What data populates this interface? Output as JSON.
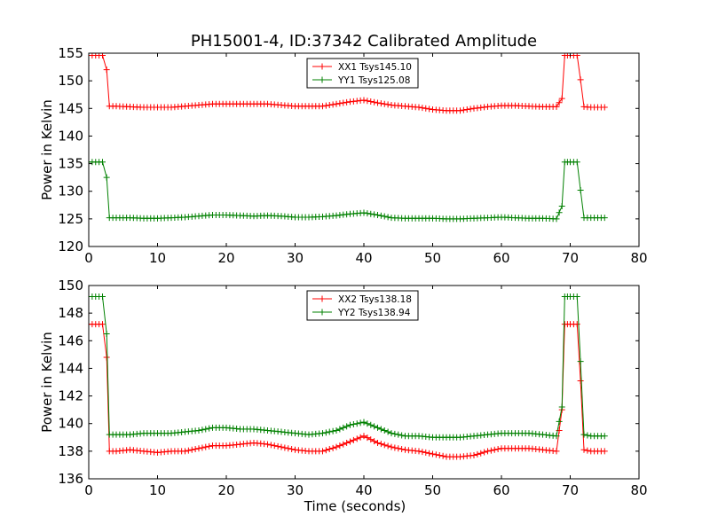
{
  "figure": {
    "title": "PH15001-4, ID:37342 Calibrated Amplitude"
  },
  "chart_data": [
    {
      "type": "line",
      "title": "PH15001-4, ID:37342 Calibrated Amplitude",
      "xlabel": "",
      "ylabel": "Power in Kelvin",
      "xlim": [
        0,
        80
      ],
      "ylim": [
        120,
        155
      ],
      "xticks": [
        "0",
        "10",
        "20",
        "30",
        "40",
        "50",
        "60",
        "70",
        "80"
      ],
      "yticks": [
        "120",
        "125",
        "130",
        "135",
        "140",
        "145",
        "150",
        "155"
      ],
      "xtick_values": [
        0,
        10,
        20,
        30,
        40,
        50,
        60,
        70,
        80
      ],
      "ytick_values": [
        120,
        125,
        130,
        135,
        140,
        145,
        150,
        155
      ],
      "grid": false,
      "legend_position": "top-center",
      "marker": "+",
      "series": [
        {
          "name": "XX1 Tsys145.10",
          "color": "#ff0000",
          "x": [
            0,
            1,
            2,
            2.6,
            3,
            4,
            6,
            8,
            10,
            12,
            14,
            16,
            18,
            20,
            22,
            24,
            26,
            28,
            30,
            32,
            34,
            36,
            38,
            40,
            42,
            44,
            46,
            48,
            50,
            52,
            54,
            56,
            58,
            60,
            62,
            64,
            66,
            68,
            68.8,
            69.2,
            70,
            71,
            71.5,
            72,
            73,
            74,
            75
          ],
          "y": [
            154.6,
            154.6,
            154.6,
            152.0,
            145.4,
            145.4,
            145.3,
            145.2,
            145.2,
            145.2,
            145.4,
            145.6,
            145.8,
            145.8,
            145.8,
            145.8,
            145.8,
            145.6,
            145.4,
            145.4,
            145.4,
            145.8,
            146.2,
            146.5,
            146.0,
            145.6,
            145.4,
            145.2,
            144.8,
            144.6,
            144.6,
            145.0,
            145.3,
            145.5,
            145.5,
            145.4,
            145.3,
            145.3,
            146.8,
            154.6,
            154.6,
            154.6,
            150.2,
            145.3,
            145.2,
            145.2,
            145.2
          ]
        },
        {
          "name": "YY1 Tsys125.08",
          "color": "#008000",
          "x": [
            0,
            1,
            2,
            2.6,
            3,
            4,
            6,
            8,
            10,
            12,
            14,
            16,
            18,
            20,
            22,
            24,
            26,
            28,
            30,
            32,
            34,
            36,
            38,
            40,
            42,
            44,
            46,
            48,
            50,
            52,
            54,
            56,
            58,
            60,
            62,
            64,
            66,
            68,
            68.8,
            69.2,
            70,
            71,
            71.5,
            72,
            73,
            74,
            75
          ],
          "y": [
            135.3,
            135.3,
            135.3,
            132.5,
            125.2,
            125.2,
            125.2,
            125.1,
            125.1,
            125.2,
            125.3,
            125.5,
            125.7,
            125.7,
            125.6,
            125.5,
            125.6,
            125.5,
            125.3,
            125.3,
            125.4,
            125.6,
            125.9,
            126.1,
            125.7,
            125.2,
            125.1,
            125.1,
            125.1,
            125.0,
            125.0,
            125.1,
            125.2,
            125.3,
            125.2,
            125.1,
            125.1,
            125.0,
            127.3,
            135.3,
            135.3,
            135.3,
            130.2,
            125.2,
            125.2,
            125.2,
            125.2
          ]
        }
      ]
    },
    {
      "type": "line",
      "title": "",
      "xlabel": "Time (seconds)",
      "ylabel": "Power in Kelvin",
      "xlim": [
        0,
        80
      ],
      "ylim": [
        136,
        150
      ],
      "xticks": [
        "0",
        "10",
        "20",
        "30",
        "40",
        "50",
        "60",
        "70",
        "80"
      ],
      "yticks": [
        "136",
        "138",
        "140",
        "142",
        "144",
        "146",
        "148",
        "150"
      ],
      "xtick_values": [
        0,
        10,
        20,
        30,
        40,
        50,
        60,
        70,
        80
      ],
      "ytick_values": [
        136,
        138,
        140,
        142,
        144,
        146,
        148,
        150
      ],
      "grid": false,
      "legend_position": "top-center",
      "marker": "+",
      "series": [
        {
          "name": "XX2 Tsys138.18",
          "color": "#ff0000",
          "x": [
            0,
            1,
            2,
            2.6,
            3,
            4,
            6,
            8,
            10,
            12,
            14,
            16,
            18,
            20,
            22,
            24,
            26,
            28,
            30,
            32,
            34,
            36,
            38,
            40,
            42,
            44,
            46,
            48,
            50,
            52,
            54,
            56,
            58,
            60,
            62,
            64,
            66,
            68,
            68.8,
            69.2,
            70,
            71,
            71.5,
            72,
            73,
            74,
            75
          ],
          "y": [
            147.2,
            147.2,
            147.2,
            144.8,
            138.0,
            138.0,
            138.1,
            138.0,
            137.9,
            138.0,
            138.0,
            138.2,
            138.4,
            138.4,
            138.5,
            138.6,
            138.5,
            138.3,
            138.1,
            138.0,
            138.0,
            138.3,
            138.7,
            139.1,
            138.6,
            138.3,
            138.1,
            138.0,
            137.8,
            137.6,
            137.6,
            137.7,
            138.0,
            138.2,
            138.2,
            138.2,
            138.1,
            138.0,
            141.0,
            147.2,
            147.2,
            147.2,
            143.1,
            138.1,
            138.0,
            138.0,
            138.0
          ]
        },
        {
          "name": "YY2 Tsys138.94",
          "color": "#008000",
          "x": [
            0,
            1,
            2,
            2.6,
            3,
            4,
            6,
            8,
            10,
            12,
            14,
            16,
            18,
            20,
            22,
            24,
            26,
            28,
            30,
            32,
            34,
            36,
            38,
            40,
            42,
            44,
            46,
            48,
            50,
            52,
            54,
            56,
            58,
            60,
            62,
            64,
            66,
            68,
            68.8,
            69.2,
            70,
            71,
            71.5,
            72,
            73,
            74,
            75
          ],
          "y": [
            149.2,
            149.2,
            149.2,
            146.5,
            139.2,
            139.2,
            139.2,
            139.3,
            139.3,
            139.3,
            139.4,
            139.5,
            139.7,
            139.7,
            139.6,
            139.6,
            139.5,
            139.4,
            139.3,
            139.2,
            139.3,
            139.5,
            139.9,
            140.1,
            139.7,
            139.3,
            139.1,
            139.1,
            139.0,
            139.0,
            139.0,
            139.1,
            139.2,
            139.3,
            139.3,
            139.3,
            139.2,
            139.1,
            141.2,
            149.2,
            149.2,
            149.2,
            144.5,
            139.2,
            139.1,
            139.1,
            139.1
          ]
        }
      ]
    }
  ]
}
